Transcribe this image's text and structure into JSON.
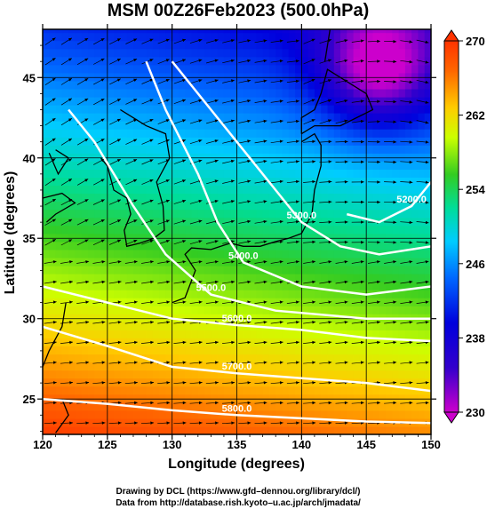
{
  "chart_data": {
    "type": "heatmap",
    "title": "MSM 00Z26Feb2023 (500.0hPa)",
    "xlabel": "Longitude (degrees)",
    "ylabel": "Latitude  (degrees)",
    "xlim": [
      120,
      150
    ],
    "ylim": [
      22.8,
      48
    ],
    "x_ticks": [
      "120",
      "125",
      "130",
      "135",
      "140",
      "145",
      "150"
    ],
    "y_ticks": [
      "25",
      "30",
      "35",
      "40",
      "45"
    ],
    "colorbar": {
      "min": 230,
      "max": 270,
      "ticks": [
        "230",
        "238",
        "246",
        "254",
        "262",
        "270"
      ],
      "colors": [
        "#cc00cc",
        "#0000dd",
        "#00aaff",
        "#00dd99",
        "#33cc22",
        "#ffff00",
        "#ff9900",
        "#ff3300"
      ]
    },
    "contours": [
      {
        "label": "5200.0",
        "points": [
          [
            143.5,
            36.5
          ],
          [
            146,
            36
          ],
          [
            148.5,
            37
          ],
          [
            150,
            38.5
          ]
        ]
      },
      {
        "label": "5300.0",
        "points": [
          [
            130,
            46
          ],
          [
            133,
            43
          ],
          [
            136,
            40
          ],
          [
            138,
            38
          ],
          [
            140,
            36
          ],
          [
            143,
            34.5
          ],
          [
            146,
            34
          ],
          [
            150,
            34.5
          ]
        ]
      },
      {
        "label": "5400.0",
        "points": [
          [
            128,
            46
          ],
          [
            129.5,
            43
          ],
          [
            132,
            39
          ],
          [
            133.5,
            36
          ],
          [
            135.5,
            33.5
          ],
          [
            140,
            32
          ],
          [
            145,
            31.5
          ],
          [
            150,
            32
          ]
        ]
      },
      {
        "label": "5500.0",
        "points": [
          [
            122,
            43
          ],
          [
            124,
            41
          ],
          [
            127,
            37
          ],
          [
            129.5,
            34
          ],
          [
            133,
            31.5
          ],
          [
            138,
            30.5
          ],
          [
            145,
            30
          ],
          [
            150,
            30
          ]
        ]
      },
      {
        "label": "5600.0",
        "points": [
          [
            120,
            32
          ],
          [
            125,
            31
          ],
          [
            130,
            30
          ],
          [
            135,
            29.6
          ],
          [
            140,
            29.3
          ],
          [
            145,
            28.8
          ],
          [
            150,
            28.6
          ]
        ]
      },
      {
        "label": "5700.0",
        "points": [
          [
            120,
            29.5
          ],
          [
            125,
            28.3
          ],
          [
            130,
            27
          ],
          [
            135,
            26.6
          ],
          [
            140,
            26.3
          ],
          [
            145,
            26
          ],
          [
            150,
            25.5
          ]
        ]
      },
      {
        "label": "5800.0",
        "points": [
          [
            120,
            25
          ],
          [
            125,
            24.7
          ],
          [
            130,
            24.3
          ],
          [
            135,
            24
          ],
          [
            140,
            23.8
          ],
          [
            145,
            23.6
          ],
          [
            150,
            23.5
          ]
        ]
      }
    ]
  },
  "credits": {
    "line1": "Drawing by DCL (https://www.gfd–dennou.org/library/dcl/)",
    "line2": "Data from http://database.rish.kyoto–u.ac.jp/arch/jmadata/"
  }
}
